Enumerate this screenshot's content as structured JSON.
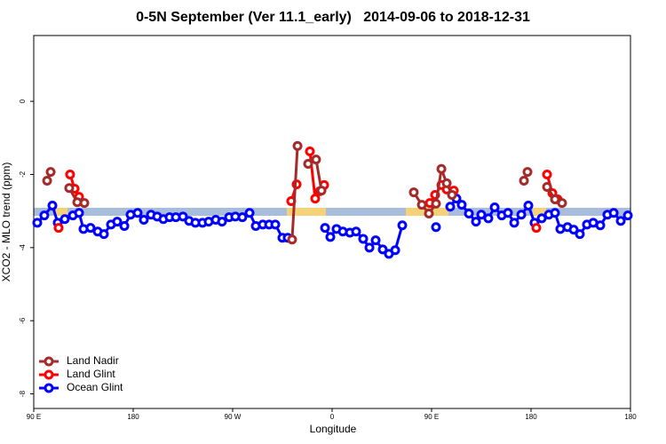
{
  "chart_data": {
    "type": "line",
    "title": "0-5N September (Ver 11.1_early)   2014-09-06 to 2018-12-31",
    "x_label": "Longitude",
    "y_label": "XCO2 - MLO trend (ppm)",
    "xlim": [
      90,
      630
    ],
    "ylim": [
      -8.4,
      1.8
    ],
    "xticks": [
      {
        "value": 90,
        "label": "90 E"
      },
      180,
      {
        "value": 270,
        "label": "90 W"
      },
      {
        "value": 360,
        "label": "0"
      },
      {
        "value": 450,
        "label": "90 E"
      },
      {
        "value": 540,
        "label": "180"
      },
      {
        "value": 630,
        "label": "180"
      }
    ],
    "yticks": [
      0,
      -2,
      -4,
      -6,
      -8
    ],
    "legend": "bottom-left",
    "series": [
      {
        "name": "Land Nadir",
        "color": "#a52a2a",
        "x": [
          102.1,
          105.3,
          null,
          122.1,
          129.4,
          135.8,
          null,
          323.8,
          328.7,
          null,
          338.3,
          345.5,
          350.4,
          null,
          433.9,
          441.2,
          447.6,
          454,
          458.9,
          463.7,
          468.5,
          null,
          533.6,
          536.8,
          null,
          554.5,
          561.7,
          568.1
        ],
        "values": [
          -2.17,
          -1.93,
          null,
          -2.37,
          -2.76,
          -2.78,
          null,
          -3.78,
          -1.22,
          null,
          -1.71,
          -1.59,
          -2.44,
          null,
          -2.49,
          -2.83,
          -3.07,
          -2.8,
          -1.85,
          -2.24,
          -2.56,
          null,
          -2.17,
          -1.93,
          null,
          -2.34,
          -2.68,
          -2.78
        ]
      },
      {
        "name": "Land Glint",
        "color": "#ff0000",
        "x": [
          112.5,
          null,
          122.9,
          127,
          131,
          null,
          323,
          327.9,
          null,
          339.9,
          344.7,
          348.8,
          352.8,
          null,
          448.4,
          453.2,
          458.9,
          463.7,
          470.1,
          null,
          544.8,
          null,
          554.5,
          559.3,
          564.1
        ],
        "values": [
          -3.46,
          null,
          -2.0,
          -2.39,
          -2.61,
          null,
          -2.73,
          -2.27,
          null,
          -1.37,
          -2.66,
          -2.46,
          -2.29,
          null,
          -2.78,
          -2.56,
          -2.29,
          -2.41,
          -2.44,
          null,
          -3.46,
          null,
          -2.0,
          -2.51,
          -2.68
        ]
      },
      {
        "name": "Ocean Glint",
        "color": "#0000ff",
        "x": [
          93.2,
          99.6,
          106.9,
          111.7,
          118.1,
          125.4,
          131,
          135,
          141.4,
          147.9,
          153.5,
          159.9,
          165.5,
          172,
          177.6,
          184,
          189.6,
          196.1,
          201.7,
          207.3,
          212.9,
          218.6,
          225,
          230.6,
          236.3,
          242.7,
          248.3,
          254.7,
          260.4,
          266.8,
          272.4,
          278.8,
          285.3,
          290.9,
          297.3,
          303,
          308.6,
          315,
          319.8,
          null,
          353.6,
          358.4,
          364,
          369.7,
          376.1,
          381.7,
          388.1,
          393.8,
          399.4,
          405.8,
          411.4,
          417.1,
          423.5,
          null,
          454,
          null,
          466.9,
          472.5,
          477.3,
          483.8,
          490.2,
          495,
          501.4,
          507.1,
          513.5,
          519.1,
          524.8,
          531.2,
          537.6,
          543.2,
          549.7,
          556.1,
          561.7,
          566.5,
          573,
          578.6,
          584.2,
          590.6,
          596.3,
          602.7,
          609.1,
          614.8,
          621.2,
          627.6
        ],
        "values": [
          -3.32,
          -3.12,
          -2.85,
          -3.32,
          -3.22,
          -3.12,
          -3.05,
          -3.49,
          -3.46,
          -3.56,
          -3.63,
          -3.37,
          -3.29,
          -3.41,
          -3.1,
          -3.05,
          -3.24,
          -3.1,
          -3.15,
          -3.22,
          -3.17,
          -3.17,
          -3.15,
          -3.27,
          -3.32,
          -3.32,
          -3.29,
          -3.24,
          -3.29,
          -3.17,
          -3.15,
          -3.17,
          -3.05,
          -3.41,
          -3.37,
          -3.37,
          -3.37,
          -3.73,
          -3.73,
          null,
          -3.46,
          -3.71,
          -3.49,
          -3.56,
          -3.59,
          -3.56,
          -3.76,
          -4.0,
          -3.8,
          -4.05,
          -4.17,
          -4.07,
          -3.39,
          null,
          -3.44,
          null,
          -2.88,
          -2.66,
          -2.83,
          -3.07,
          -3.29,
          -3.1,
          -3.2,
          -2.9,
          -3.12,
          -3.05,
          -3.32,
          -3.1,
          -2.85,
          -3.32,
          -3.2,
          -3.1,
          -3.05,
          -3.49,
          -3.44,
          -3.51,
          -3.63,
          -3.37,
          -3.32,
          -3.39,
          -3.1,
          -3.05,
          -3.27,
          -3.12
        ]
      }
    ]
  }
}
